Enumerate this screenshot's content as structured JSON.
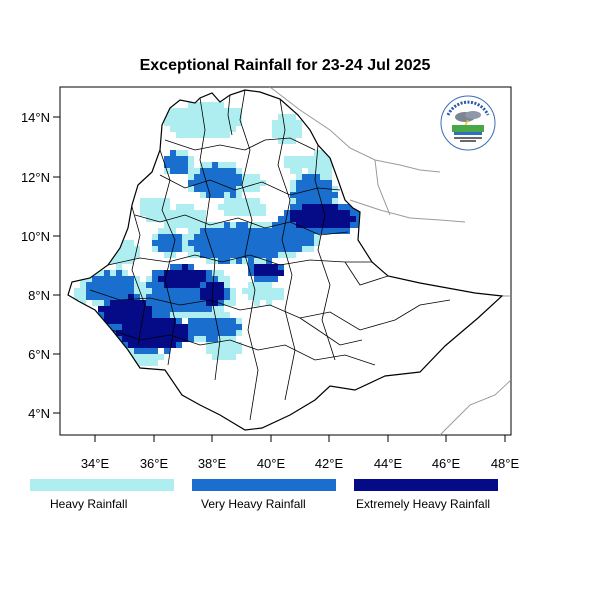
{
  "title": "Exceptional Rainfall for 23-24 Jul 2025",
  "axes": {
    "x_ticks": [
      "34°E",
      "36°E",
      "38°E",
      "40°E",
      "42°E",
      "44°E",
      "46°E",
      "48°E"
    ],
    "y_ticks": [
      "14°N",
      "12°N",
      "10°N",
      "8°N",
      "6°N",
      "4°N"
    ]
  },
  "legend": [
    {
      "label": "Heavy Rainfall",
      "color": "#aeeef0"
    },
    {
      "label": "Very Heavy Rainfall",
      "color": "#1a6fce"
    },
    {
      "label": "Extremely Heavy Rainfall",
      "color": "#050a86"
    }
  ],
  "logo": {
    "icon": "agency-seal-icon"
  }
}
